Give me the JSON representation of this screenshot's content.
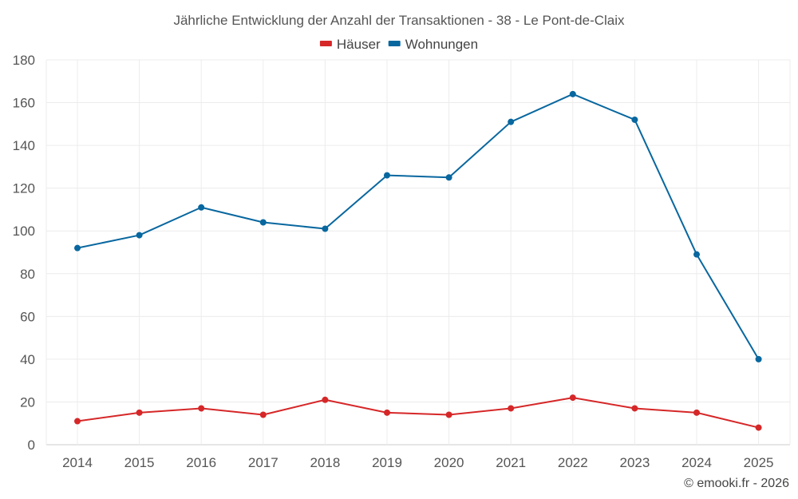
{
  "chart_data": {
    "type": "line",
    "title": "Jährliche Entwicklung der Anzahl der Transaktionen - 38 - Le Pont-de-Claix",
    "xlabel": "",
    "ylabel": "",
    "categories": [
      "2014",
      "2015",
      "2016",
      "2017",
      "2018",
      "2019",
      "2020",
      "2021",
      "2022",
      "2023",
      "2024",
      "2025"
    ],
    "ylim": [
      0,
      180
    ],
    "yticks": [
      0,
      20,
      40,
      60,
      80,
      100,
      120,
      140,
      160,
      180
    ],
    "grid": true,
    "legend_position": "top-center",
    "series": [
      {
        "name": "Häuser",
        "color": "#d62728",
        "values": [
          11,
          15,
          17,
          14,
          21,
          15,
          14,
          17,
          22,
          17,
          15,
          8
        ]
      },
      {
        "name": "Wohnungen",
        "color": "#08679f",
        "values": [
          92,
          98,
          111,
          104,
          101,
          126,
          125,
          151,
          164,
          152,
          89,
          40
        ]
      }
    ]
  },
  "credit": "© emooki.fr - 2026"
}
